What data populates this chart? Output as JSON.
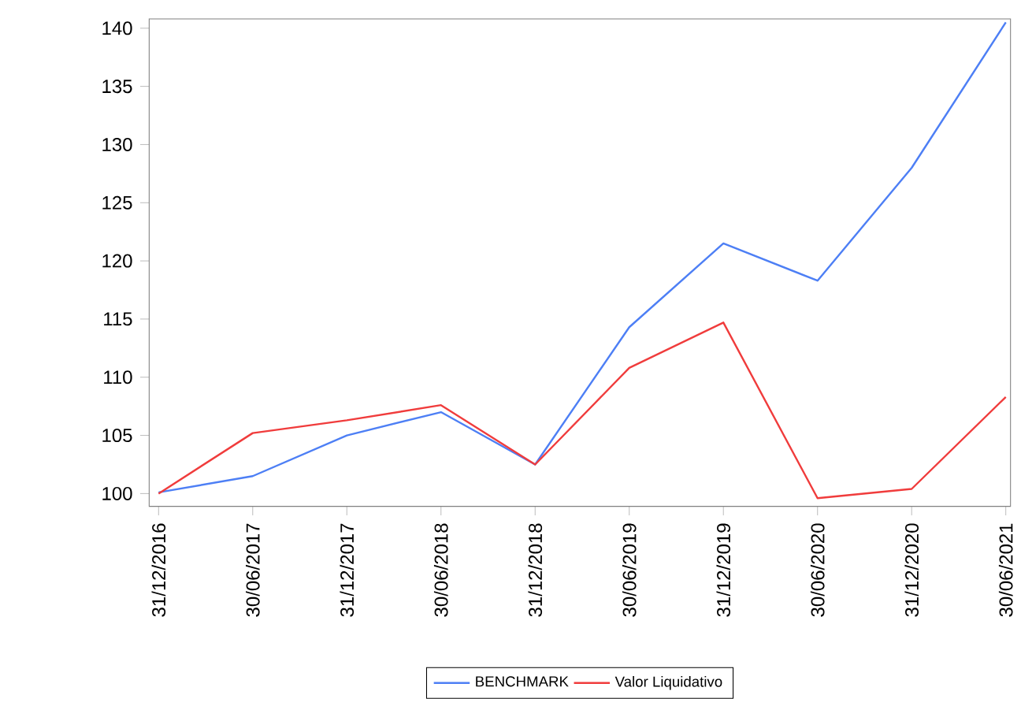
{
  "chart_data": {
    "type": "line",
    "categories": [
      "31/12/2016",
      "30/06/2017",
      "31/12/2017",
      "30/06/2018",
      "31/12/2018",
      "30/06/2019",
      "31/12/2019",
      "30/06/2020",
      "31/12/2020",
      "30/06/2021"
    ],
    "series": [
      {
        "name": "BENCHMARK",
        "color": "#4d7ff5",
        "values": [
          100.1,
          101.5,
          105,
          107,
          102.5,
          114.3,
          121.5,
          118.3,
          128,
          140.5
        ]
      },
      {
        "name": "Valor Liquidativo",
        "color": "#f03c3c",
        "values": [
          100,
          105.2,
          106.3,
          107.6,
          102.5,
          110.8,
          114.7,
          99.6,
          100.4,
          108.3
        ]
      }
    ],
    "ylim": [
      98.9,
      140.8
    ],
    "yticks": [
      100,
      105,
      110,
      115,
      120,
      125,
      130,
      135,
      140
    ],
    "grid": false,
    "legend": "bottom",
    "marker": "none",
    "line_style": "solid"
  }
}
